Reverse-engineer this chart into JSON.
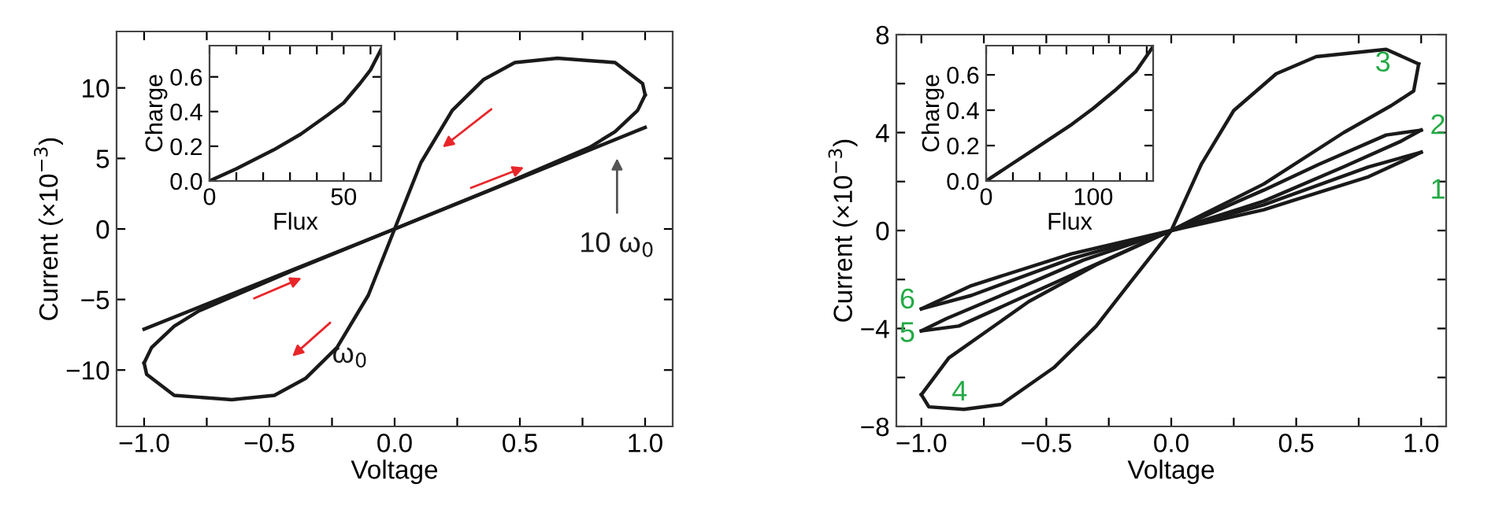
{
  "chart_data": [
    {
      "type": "line",
      "xlabel": "Voltage",
      "ylabel": "Current (×10$^{−3}$)",
      "xlim": [
        -1.11,
        1.11
      ],
      "ylim": [
        -14,
        14
      ],
      "xticks": [
        {
          "value": -1,
          "label": "−1.0"
        },
        {
          "value": -0.75,
          "label": null
        },
        {
          "value": -0.5,
          "label": "−0.5"
        },
        {
          "value": -0.25,
          "label": null
        },
        {
          "value": 0,
          "label": "0.0"
        },
        {
          "value": 0.25,
          "label": null
        },
        {
          "value": 0.5,
          "label": "0.5"
        },
        {
          "value": 0.75,
          "label": null
        },
        {
          "value": 1,
          "label": "1.0"
        }
      ],
      "yticks": [
        {
          "value": -10,
          "label": "−10"
        },
        {
          "value": -5,
          "label": "−5"
        },
        0,
        5,
        10
      ],
      "grid": false,
      "legend": false,
      "marker": "none",
      "line_style": "solid",
      "series": [
        {
          "color": "#1a1a1a",
          "x": [
            -1.0,
            -0.97,
            -0.88,
            -0.78,
            -0.4,
            0,
            0.105,
            0.23,
            0.356,
            0.48,
            0.65,
            0.88,
            0.99,
            1.0
          ],
          "values": [
            -9.5,
            -8.4,
            -6.9,
            -5.8,
            -2.9,
            0,
            4.7,
            8.4,
            10.6,
            11.8,
            12.1,
            11.8,
            10.3,
            9.5
          ]
        },
        {
          "color": "#1a1a1a",
          "x": [
            -1.0,
            -0.99,
            -0.88,
            -0.65,
            -0.48,
            -0.356,
            -0.23,
            -0.105,
            0,
            0.4,
            0.78,
            0.88,
            0.97,
            1.0
          ],
          "values": [
            -9.5,
            -10.3,
            -11.8,
            -12.1,
            -11.8,
            -10.6,
            -8.4,
            -4.7,
            0,
            2.9,
            5.8,
            6.9,
            8.4,
            9.5
          ]
        },
        {
          "color": "#1a1a1a",
          "x": [
            -1.0,
            0,
            1.0
          ],
          "values": [
            -7.1,
            0,
            7.2
          ]
        }
      ],
      "annotations": [
        "ω$_{0}$",
        "10 ω$_{0}$"
      ]
    },
    {
      "type": "line",
      "xlabel": "Flux",
      "ylabel": "Charge",
      "xlim": [
        0,
        64
      ],
      "ylim": [
        0,
        0.78
      ],
      "xticks": [
        0,
        {
          "value": 10,
          "label": null
        },
        {
          "value": 20,
          "label": null
        },
        {
          "value": 30,
          "label": null
        },
        {
          "value": 40,
          "label": null
        },
        50,
        {
          "value": 60,
          "label": null
        }
      ],
      "yticks": [
        {
          "value": 0,
          "label": "0.0"
        },
        {
          "value": 0.2,
          "label": "0.2"
        },
        {
          "value": 0.4,
          "label": "0.4"
        },
        {
          "value": 0.6,
          "label": "0.6"
        }
      ],
      "grid": false,
      "legend": false,
      "marker": "none",
      "line_style": "solid",
      "series": [
        {
          "color": "#1a1a1a",
          "x": [
            0,
            10,
            24,
            34,
            44,
            50,
            56,
            60,
            64
          ],
          "values": [
            0,
            0.07,
            0.18,
            0.27,
            0.38,
            0.45,
            0.56,
            0.64,
            0.76
          ]
        }
      ]
    },
    {
      "type": "line",
      "xlabel": "Voltage",
      "ylabel": "Current (×10$^{−3}$)",
      "xlim": [
        -1.1,
        1.1
      ],
      "ylim": [
        -8,
        8
      ],
      "xticks": [
        {
          "value": -1,
          "label": "−1.0"
        },
        {
          "value": -0.75,
          "label": null
        },
        {
          "value": -0.5,
          "label": "−0.5"
        },
        {
          "value": -0.25,
          "label": null
        },
        {
          "value": 0,
          "label": "0.0"
        },
        {
          "value": 0.25,
          "label": null
        },
        {
          "value": 0.5,
          "label": "0.5"
        },
        {
          "value": 0.75,
          "label": null
        },
        {
          "value": 1,
          "label": "1.0"
        }
      ],
      "yticks": [
        {
          "value": -8,
          "label": "−8"
        },
        {
          "value": -6,
          "label": null
        },
        {
          "value": -4,
          "label": "−4"
        },
        {
          "value": -2,
          "label": null
        },
        0,
        {
          "value": 2,
          "label": null
        },
        4,
        {
          "value": 6,
          "label": null
        },
        8
      ],
      "grid": false,
      "legend": false,
      "marker": "none",
      "line_style": "solid",
      "series": [
        {
          "color": "#1a1a1a",
          "x": [
            -1.0,
            -0.97,
            -0.83,
            -0.68,
            -0.47,
            -0.3,
            -0.17,
            0,
            0.12,
            0.25,
            0.42,
            0.58,
            0.86,
            0.99
          ],
          "values": [
            -6.7,
            -7.2,
            -7.3,
            -7.1,
            -5.6,
            -3.9,
            -2.2,
            0,
            2.7,
            4.9,
            6.4,
            7.1,
            7.4,
            6.8
          ]
        },
        {
          "color": "#1a1a1a",
          "x": [
            -1.0,
            -0.89,
            -0.57,
            -0.3,
            0,
            0.37,
            0.59,
            0.86,
            1.0
          ],
          "values": [
            -6.7,
            -5.2,
            -2.9,
            -1.4,
            0,
            1.65,
            2.7,
            3.9,
            4.1
          ]
        },
        {
          "color": "#1a1a1a",
          "x": [
            -1.0,
            -0.85,
            -0.6,
            -0.35,
            0,
            0.37,
            0.69,
            0.92,
            1.0
          ],
          "values": [
            -4.1,
            -3.9,
            -2.75,
            -1.6,
            0,
            1.2,
            2.6,
            3.65,
            4.1
          ]
        },
        {
          "color": "#1a1a1a",
          "x": [
            -1.0,
            -0.9,
            -0.6,
            -0.35,
            0,
            0.37,
            0.79,
            1.0
          ],
          "values": [
            -4.1,
            -3.6,
            -2.3,
            -1.2,
            0,
            1.05,
            2.6,
            3.2
          ]
        },
        {
          "color": "#1a1a1a",
          "x": [
            -1.0,
            -0.8,
            -0.4,
            0,
            0.37,
            0.79,
            0.95,
            1.0
          ],
          "values": [
            -3.2,
            -2.65,
            -1.15,
            0,
            0.85,
            2.2,
            2.95,
            3.2
          ]
        },
        {
          "color": "#1a1a1a",
          "x": [
            -1.0,
            -0.8,
            -0.4,
            0,
            0.37,
            0.69,
            0.88,
            0.97,
            0.99
          ],
          "values": [
            -3.2,
            -2.25,
            -0.95,
            0,
            1.9,
            4.0,
            5.1,
            5.7,
            6.8
          ]
        }
      ],
      "annotations": [
        "1",
        "2",
        "3",
        "4",
        "5",
        "6"
      ]
    },
    {
      "type": "line",
      "xlabel": "Flux",
      "ylabel": "Charge",
      "xlim": [
        0,
        156
      ],
      "ylim": [
        0,
        0.765
      ],
      "xticks": [
        0,
        {
          "value": 25,
          "label": null
        },
        {
          "value": 50,
          "label": null
        },
        {
          "value": 75,
          "label": null
        },
        100,
        {
          "value": 125,
          "label": null
        },
        {
          "value": 150,
          "label": null
        }
      ],
      "yticks": [
        {
          "value": 0,
          "label": "0.0"
        },
        {
          "value": 0.2,
          "label": "0.2"
        },
        {
          "value": 0.4,
          "label": "0.4"
        },
        {
          "value": 0.6,
          "label": "0.6"
        }
      ],
      "grid": false,
      "legend": false,
      "marker": "none",
      "line_style": "solid",
      "series": [
        {
          "color": "#1a1a1a",
          "x": [
            0,
            20,
            40,
            60,
            80,
            100,
            120,
            140,
            156
          ],
          "values": [
            0,
            0.08,
            0.16,
            0.24,
            0.32,
            0.41,
            0.51,
            0.62,
            0.76
          ]
        }
      ]
    }
  ]
}
